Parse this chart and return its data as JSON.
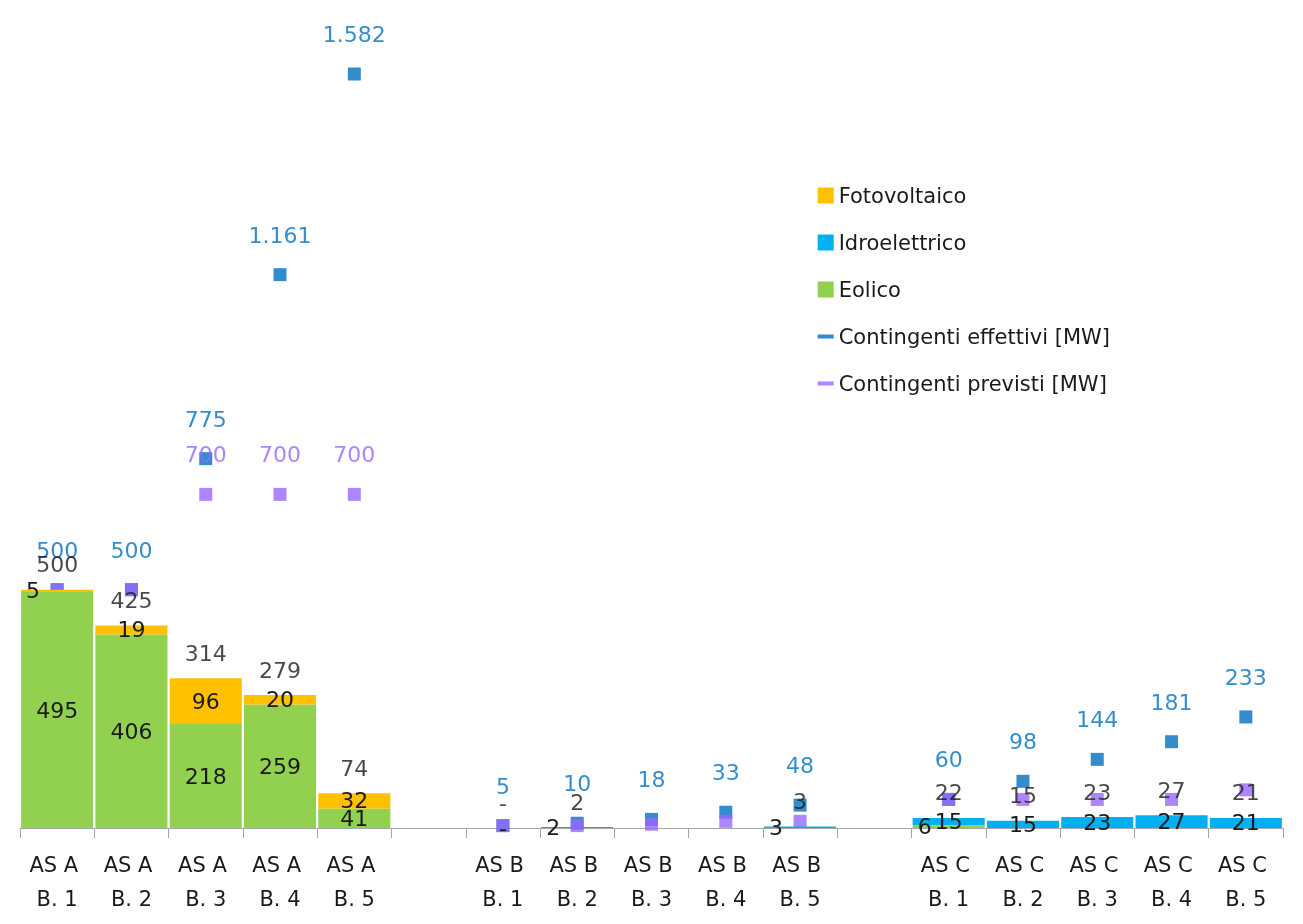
{
  "chart_data": {
    "type": "bar",
    "stacked": true,
    "legend": "right",
    "categories": [
      "AS A B. 1",
      "AS A B. 2",
      "AS A B. 3",
      "AS A B. 4",
      "AS A B. 5",
      null,
      "AS B B. 1",
      "AS B B. 2",
      "AS B B. 3",
      "AS B B. 4",
      "AS B B. 5",
      null,
      "AS C B. 1",
      "AS C B. 2",
      "AS C B. 3",
      "AS C B. 4",
      "AS C B. 5"
    ],
    "series": [
      {
        "name": "Eolico",
        "color": "#92d050",
        "values": [
          495,
          406,
          218,
          259,
          41,
          null,
          null,
          null,
          null,
          null,
          null,
          null,
          6,
          null,
          null,
          null,
          null
        ],
        "value_labels": [
          "495",
          "406",
          "218",
          "259",
          "41",
          null,
          null,
          null,
          null,
          null,
          null,
          null,
          "6",
          null,
          null,
          null,
          null
        ]
      },
      {
        "name": "Idroelettrico",
        "color": "#00b0f0",
        "values": [
          null,
          null,
          null,
          null,
          null,
          null,
          0,
          2,
          null,
          null,
          3,
          null,
          15,
          15,
          23,
          27,
          21
        ],
        "value_labels": [
          null,
          null,
          null,
          null,
          null,
          null,
          "-",
          "2",
          null,
          null,
          "3",
          null,
          "15",
          "15",
          "23",
          "27",
          "21"
        ]
      },
      {
        "name": "Fotovoltaico",
        "color": "#ffc000",
        "values": [
          5,
          19,
          96,
          20,
          32,
          null,
          null,
          null,
          null,
          null,
          null,
          null,
          null,
          null,
          null,
          null,
          null
        ],
        "value_labels": [
          "5",
          "19",
          "96",
          "20",
          "32",
          null,
          null,
          null,
          null,
          null,
          null,
          null,
          null,
          null,
          null,
          null,
          null
        ]
      },
      {
        "name": "Contingenti effettivi [MW]",
        "type": "scatter",
        "marker": "square",
        "color": "#0070c0",
        "values": [
          500,
          500,
          775,
          1161,
          1582,
          null,
          5,
          10,
          18,
          33,
          48,
          null,
          60,
          98,
          144,
          181,
          233
        ],
        "value_labels": [
          "500",
          "500",
          "775",
          "1.161",
          "1.582",
          null,
          "5",
          "10",
          "18",
          "33",
          "48",
          null,
          "60",
          "98",
          "144",
          "181",
          "233"
        ]
      },
      {
        "name": "Contingenti previsti [MW]",
        "type": "scatter",
        "marker": "square",
        "color": "#9966ff",
        "values": [
          500,
          500,
          700,
          700,
          700,
          null,
          5,
          5,
          8,
          14,
          14,
          null,
          60,
          60,
          60,
          60,
          80
        ],
        "value_labels": [
          null,
          null,
          "700",
          "700",
          "700",
          null,
          null,
          null,
          null,
          null,
          null,
          null,
          null,
          null,
          null,
          null,
          null
        ]
      }
    ],
    "totals": [
      "500",
      "425",
      "314",
      "279",
      "74",
      null,
      "-",
      "2",
      null,
      null,
      "3",
      null,
      "22",
      "15",
      "23",
      "27",
      "21"
    ]
  }
}
